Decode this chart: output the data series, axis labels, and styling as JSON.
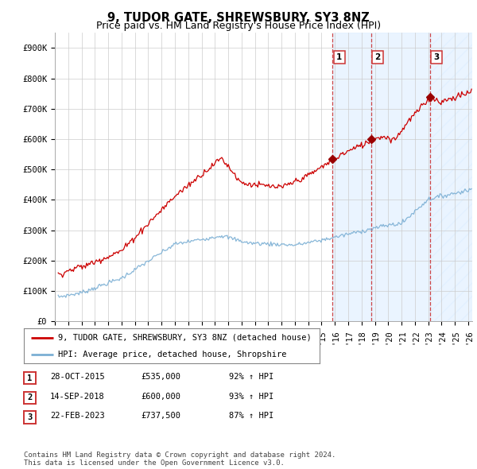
{
  "title": "9, TUDOR GATE, SHREWSBURY, SY3 8NZ",
  "subtitle": "Price paid vs. HM Land Registry's House Price Index (HPI)",
  "ylabel_ticks": [
    "£0",
    "£100K",
    "£200K",
    "£300K",
    "£400K",
    "£500K",
    "£600K",
    "£700K",
    "£800K",
    "£900K"
  ],
  "ytick_vals": [
    0,
    100000,
    200000,
    300000,
    400000,
    500000,
    600000,
    700000,
    800000,
    900000
  ],
  "ylim": [
    0,
    950000
  ],
  "xlim_start": 1995.3,
  "xlim_end": 2026.3,
  "red_line_color": "#cc0000",
  "blue_line_color": "#7bafd4",
  "background_color": "#ffffff",
  "grid_color": "#cccccc",
  "sale_dates": [
    2015.83,
    2018.71,
    2023.13
  ],
  "sale_prices": [
    535000,
    600000,
    737500
  ],
  "sale_labels": [
    "1",
    "2",
    "3"
  ],
  "vline_color": "#cc3333",
  "shade_color": "#ddeeff",
  "shade_alpha": 0.6,
  "legend_label_red": "9, TUDOR GATE, SHREWSBURY, SY3 8NZ (detached house)",
  "legend_label_blue": "HPI: Average price, detached house, Shropshire",
  "table_rows": [
    [
      "1",
      "28-OCT-2015",
      "£535,000",
      "92% ↑ HPI"
    ],
    [
      "2",
      "14-SEP-2018",
      "£600,000",
      "93% ↑ HPI"
    ],
    [
      "3",
      "22-FEB-2023",
      "£737,500",
      "87% ↑ HPI"
    ]
  ],
  "footer": "Contains HM Land Registry data © Crown copyright and database right 2024.\nThis data is licensed under the Open Government Licence v3.0.",
  "title_fontsize": 10.5,
  "subtitle_fontsize": 9,
  "axis_fontsize": 7.5,
  "legend_fontsize": 7.5,
  "table_fontsize": 7.5,
  "footer_fontsize": 6.5
}
